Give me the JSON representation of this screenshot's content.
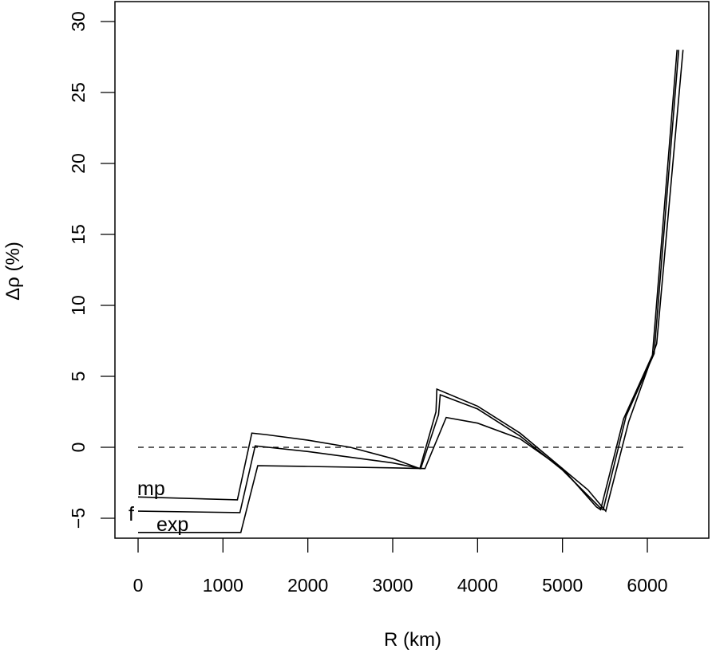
{
  "chart_data": {
    "type": "line",
    "title": "",
    "xlabel": "R (km)",
    "ylabel": "Δρ (%)",
    "xlim": [
      -300,
      6700
    ],
    "ylim": [
      -6.5,
      31
    ],
    "grid": false,
    "legend": "inline labels at left of curves",
    "x_ticks": [
      0,
      1000,
      2000,
      3000,
      4000,
      5000,
      6000
    ],
    "y_ticks": [
      -5,
      0,
      5,
      10,
      15,
      20,
      25,
      30
    ],
    "reference_line": {
      "y": 0,
      "style": "dashed"
    },
    "series": [
      {
        "name": "mp",
        "points": [
          [
            0,
            -3.5
          ],
          [
            1170,
            -3.7
          ],
          [
            1340,
            1.0
          ],
          [
            1500,
            0.9
          ],
          [
            2000,
            0.5
          ],
          [
            2500,
            0.0
          ],
          [
            3000,
            -0.8
          ],
          [
            3320,
            -1.5
          ],
          [
            3510,
            2.5
          ],
          [
            3520,
            4.1
          ],
          [
            4000,
            2.9
          ],
          [
            4500,
            1.0
          ],
          [
            5000,
            -1.5
          ],
          [
            5400,
            -4.2
          ],
          [
            5450,
            -4.4
          ],
          [
            5720,
            2.0
          ],
          [
            6060,
            6.5
          ],
          [
            6350,
            28.0
          ]
        ]
      },
      {
        "name": "f",
        "points": [
          [
            0,
            -4.5
          ],
          [
            1200,
            -4.6
          ],
          [
            1380,
            0.1
          ],
          [
            2000,
            -0.3
          ],
          [
            3000,
            -1.1
          ],
          [
            3330,
            -1.5
          ],
          [
            3540,
            2.3
          ],
          [
            3560,
            3.7
          ],
          [
            4000,
            2.7
          ],
          [
            4500,
            0.8
          ],
          [
            5000,
            -1.6
          ],
          [
            5450,
            -4.3
          ],
          [
            5480,
            -4.4
          ],
          [
            5750,
            2.2
          ],
          [
            6080,
            6.6
          ],
          [
            6370,
            28.0
          ]
        ]
      },
      {
        "name": "exp",
        "points": [
          [
            0,
            -6.0
          ],
          [
            1210,
            -6.0
          ],
          [
            1410,
            -1.3
          ],
          [
            2000,
            -1.35
          ],
          [
            3000,
            -1.45
          ],
          [
            3380,
            -1.5
          ],
          [
            3630,
            2.1
          ],
          [
            4000,
            1.7
          ],
          [
            4500,
            0.6
          ],
          [
            5000,
            -1.5
          ],
          [
            5300,
            -3.0
          ],
          [
            5510,
            -4.5
          ],
          [
            5780,
            1.8
          ],
          [
            6110,
            7.3
          ],
          [
            6420,
            28.0
          ]
        ]
      }
    ],
    "annotations": [
      {
        "text": "mp",
        "x": 0,
        "y": -3.5
      },
      {
        "text": "f",
        "x": -100,
        "y": -4.5
      },
      {
        "text": "exp",
        "x": 220,
        "y": -5.6
      }
    ]
  }
}
